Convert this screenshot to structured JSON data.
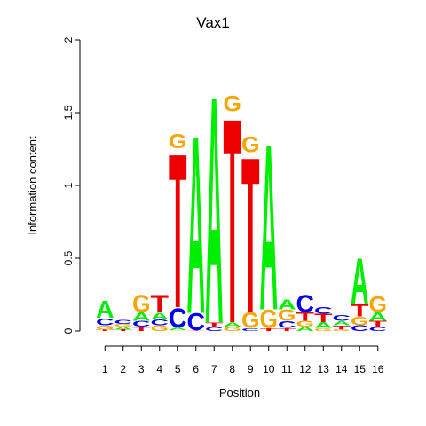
{
  "colors": {
    "A": "#00ee00",
    "C": "#0000ee",
    "G": "#f7a500",
    "T": "#ee0000"
  },
  "chart_data": {
    "type": "sequence-logo",
    "title": "Vax1",
    "xlabel": "Position",
    "ylabel": "Information content",
    "ylim": [
      0,
      2
    ],
    "yticks": [
      "0",
      "0.5",
      "1",
      "1.5",
      "2"
    ],
    "x": [
      "1",
      "2",
      "3",
      "4",
      "5",
      "6",
      "7",
      "8",
      "9",
      "10",
      "11",
      "12",
      "13",
      "14",
      "15",
      "16"
    ],
    "positions": [
      [
        [
          "T",
          0.01
        ],
        [
          "G",
          0.03
        ],
        [
          "C",
          0.05
        ],
        [
          "A",
          0.12
        ]
      ],
      [
        [
          "T",
          0.01
        ],
        [
          "A",
          0.02
        ],
        [
          "G",
          0.02
        ],
        [
          "C",
          0.03
        ]
      ],
      [
        [
          "T",
          0.03
        ],
        [
          "C",
          0.04
        ],
        [
          "A",
          0.06
        ],
        [
          "G",
          0.12
        ]
      ],
      [
        [
          "G",
          0.04
        ],
        [
          "C",
          0.04
        ],
        [
          "A",
          0.05
        ],
        [
          "T",
          0.12
        ]
      ],
      [
        [
          "G",
          0.005
        ],
        [
          "A",
          0.02
        ],
        [
          "C",
          0.14
        ],
        [
          "T",
          1.09
        ],
        [
          "G",
          0.1
        ]
      ],
      [
        [
          "T",
          0.005
        ],
        [
          "C",
          0.12
        ],
        [
          "A",
          1.26
        ]
      ],
      [
        [
          "C",
          0.03
        ],
        [
          "T",
          0.03
        ],
        [
          "A",
          1.61
        ]
      ],
      [
        [
          "G",
          0.03
        ],
        [
          "A",
          0.03
        ],
        [
          "T",
          1.45
        ],
        [
          "G",
          0.11
        ]
      ],
      [
        [
          "C",
          0.02
        ],
        [
          "G",
          0.11
        ],
        [
          "T",
          1.1
        ],
        [
          "G",
          0.11
        ]
      ],
      [
        [
          "T",
          0.02
        ],
        [
          "G",
          0.13
        ],
        [
          "A",
          1.17
        ]
      ],
      [
        [
          "T",
          0.02
        ],
        [
          "C",
          0.05
        ],
        [
          "G",
          0.08
        ],
        [
          "A",
          0.07
        ]
      ],
      [
        [
          "A",
          0.03
        ],
        [
          "G",
          0.04
        ],
        [
          "T",
          0.06
        ],
        [
          "C",
          0.12
        ]
      ],
      [
        [
          "G",
          0.02
        ],
        [
          "A",
          0.04
        ],
        [
          "T",
          0.06
        ],
        [
          "C",
          0.05
        ]
      ],
      [
        [
          "G",
          0.01
        ],
        [
          "T",
          0.03
        ],
        [
          "A",
          0.03
        ],
        [
          "C",
          0.04
        ]
      ],
      [
        [
          "C",
          0.04
        ],
        [
          "G",
          0.06
        ],
        [
          "T",
          0.09
        ],
        [
          "A",
          0.32
        ]
      ],
      [
        [
          "C",
          0.03
        ],
        [
          "T",
          0.04
        ],
        [
          "A",
          0.06
        ],
        [
          "G",
          0.11
        ]
      ]
    ]
  }
}
